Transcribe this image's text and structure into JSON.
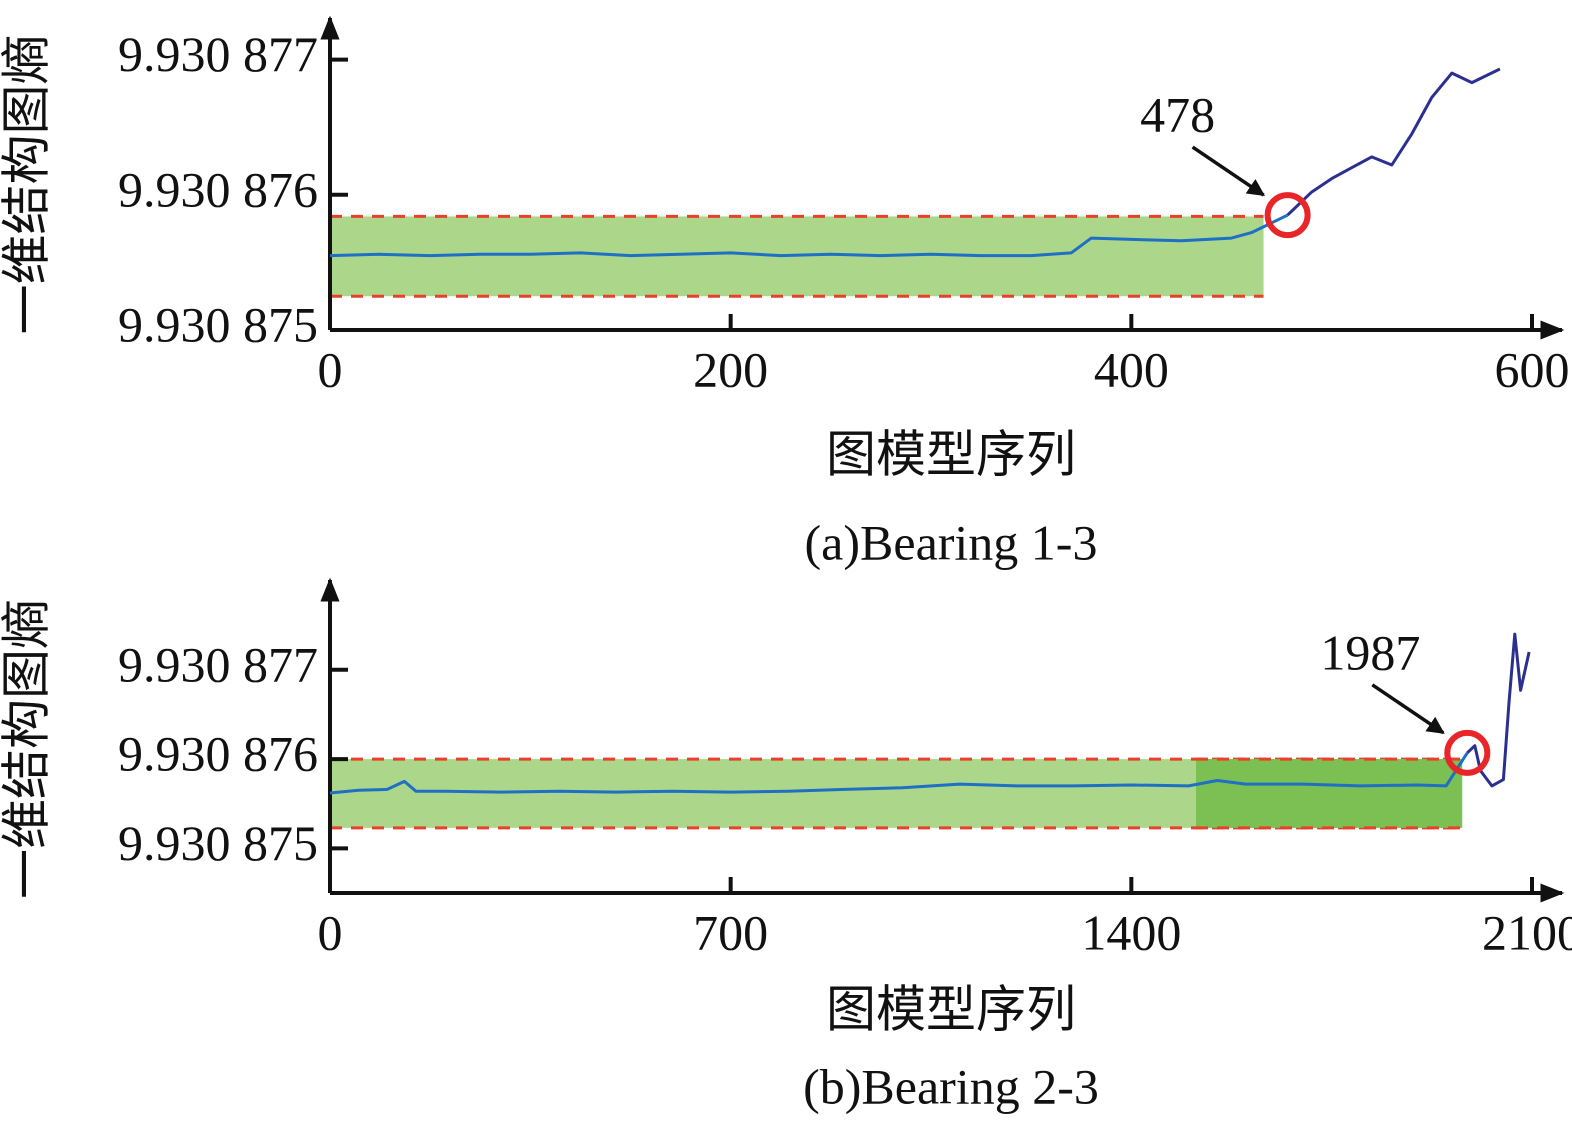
{
  "chart_data": [
    {
      "type": "line",
      "caption": "(a)Bearing 1-3",
      "xlabel": "图模型序列",
      "ylabel": "一维结构图熵",
      "xlim": [
        0,
        600
      ],
      "xticks": [
        0,
        200,
        400,
        600
      ],
      "ylim": [
        9.930875,
        9.9308773
      ],
      "yticks": [
        {
          "value": 9.930875,
          "label": "9.930 875"
        },
        {
          "value": 9.930876,
          "label": "9.930 876"
        },
        {
          "value": 9.930877,
          "label": "9.930 877"
        }
      ],
      "bands": [
        {
          "x": [
            0,
            466
          ],
          "y": [
            9.93087525,
            9.93087584
          ],
          "color": "#acd68a"
        }
      ],
      "x": [
        0,
        25,
        50,
        75,
        100,
        125,
        150,
        175,
        200,
        225,
        250,
        275,
        300,
        325,
        350,
        370,
        380,
        400,
        425,
        450,
        460,
        478,
        490,
        500,
        510,
        520,
        530,
        540,
        550,
        560,
        570,
        584
      ],
      "series": [
        {
          "color": "#1f6fc4",
          "values": [
            9.93087555,
            9.93087556,
            9.93087555,
            9.93087556,
            9.93087556,
            9.93087557,
            9.93087555,
            9.93087556,
            9.93087557,
            9.93087555,
            9.93087556,
            9.93087555,
            9.93087556,
            9.93087555,
            9.93087555,
            9.93087557,
            9.93087568,
            9.93087567,
            9.93087566,
            9.93087568,
            9.93087572,
            9.93087585,
            null,
            null,
            null,
            null,
            null,
            null,
            null,
            null,
            null,
            null
          ]
        },
        {
          "color": "#2b2f8f",
          "values": [
            null,
            null,
            null,
            null,
            null,
            null,
            null,
            null,
            null,
            null,
            null,
            null,
            null,
            null,
            null,
            null,
            null,
            null,
            null,
            null,
            null,
            9.93087585,
            9.93087602,
            9.93087612,
            9.9308762,
            9.93087628,
            9.93087622,
            9.93087645,
            9.93087672,
            9.9308769,
            9.93087683,
            9.93087693
          ]
        }
      ],
      "annotations": [
        {
          "text": "478",
          "x": 478,
          "y": 9.93087585
        }
      ]
    },
    {
      "type": "line",
      "caption": "(b)Bearing 2-3",
      "xlabel": "图模型序列",
      "ylabel": "一维结构图熵",
      "xlim": [
        0,
        2100
      ],
      "xticks": [
        0,
        700,
        1400,
        2100
      ],
      "ylim": [
        9.9308745,
        9.93087795
      ],
      "yticks": [
        {
          "value": 9.930875,
          "label": "9.930 875"
        },
        {
          "value": 9.930876,
          "label": "9.930 876"
        },
        {
          "value": 9.930877,
          "label": "9.930 877"
        }
      ],
      "bands": [
        {
          "x": [
            0,
            1978
          ],
          "y": [
            9.93087523,
            9.930876
          ],
          "color": "#acd68a"
        },
        {
          "x": [
            1513,
            1978
          ],
          "y": [
            9.93087523,
            9.930876
          ],
          "color": "#7cbf52"
        }
      ],
      "x": [
        0,
        50,
        100,
        130,
        150,
        200,
        300,
        400,
        500,
        600,
        700,
        800,
        900,
        1000,
        1100,
        1200,
        1300,
        1400,
        1500,
        1550,
        1600,
        1700,
        1800,
        1900,
        1950,
        1987,
        2000,
        2010,
        2030,
        2050,
        2060,
        2070,
        2080,
        2095
      ],
      "series": [
        {
          "color": "#1f6fc4",
          "values": [
            9.93087562,
            9.93087565,
            9.93087566,
            9.93087575,
            9.93087564,
            9.93087564,
            9.93087563,
            9.93087564,
            9.93087563,
            9.93087564,
            9.93087563,
            9.93087564,
            9.93087566,
            9.93087568,
            9.93087572,
            9.9308757,
            9.9308757,
            9.93087571,
            9.9308757,
            9.93087576,
            9.93087572,
            9.93087572,
            9.9308757,
            9.93087571,
            9.9308757,
            9.93087607,
            null,
            null,
            null,
            null,
            null,
            null,
            null,
            null
          ]
        },
        {
          "color": "#2b2f8f",
          "values": [
            null,
            null,
            null,
            null,
            null,
            null,
            null,
            null,
            null,
            null,
            null,
            null,
            null,
            null,
            null,
            null,
            null,
            null,
            null,
            null,
            null,
            null,
            null,
            null,
            null,
            9.93087607,
            9.93087615,
            9.93087587,
            9.9308757,
            9.93087577,
            9.93087665,
            9.9308774,
            9.93087677,
            9.9308772
          ]
        }
      ],
      "annotations": [
        {
          "text": "1987",
          "x": 1987,
          "y": 9.93087607
        }
      ]
    }
  ]
}
